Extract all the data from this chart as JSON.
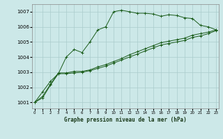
{
  "title": "Graphe pression niveau de la mer (hPa)",
  "bg_color": "#cce8e8",
  "grid_color": "#aacccc",
  "line_color": "#1a5c1a",
  "x_labels": [
    "0",
    "1",
    "2",
    "3",
    "4",
    "5",
    "6",
    "7",
    "8",
    "9",
    "10",
    "11",
    "12",
    "13",
    "14",
    "15",
    "16",
    "17",
    "18",
    "19",
    "20",
    "21",
    "22",
    "23"
  ],
  "ylim_min": 1000.6,
  "ylim_max": 1007.5,
  "yticks": [
    1001,
    1002,
    1003,
    1004,
    1005,
    1006,
    1007
  ],
  "line1": [
    1001.0,
    1001.7,
    1002.4,
    1002.9,
    1004.0,
    1004.5,
    1004.3,
    1005.0,
    1005.8,
    1006.0,
    1007.0,
    1007.1,
    1007.0,
    1006.9,
    1006.9,
    1006.85,
    1006.7,
    1006.8,
    1006.75,
    1006.6,
    1006.55,
    1006.1,
    1006.0,
    1005.8
  ],
  "line2": [
    1001.0,
    1001.4,
    1002.2,
    1002.95,
    1002.95,
    1003.05,
    1003.05,
    1003.15,
    1003.35,
    1003.5,
    1003.7,
    1003.9,
    1004.15,
    1004.35,
    1004.55,
    1004.75,
    1004.95,
    1005.05,
    1005.15,
    1005.25,
    1005.45,
    1005.55,
    1005.65,
    1005.8
  ],
  "line3": [
    1001.0,
    1001.3,
    1002.15,
    1002.9,
    1002.9,
    1002.95,
    1003.0,
    1003.1,
    1003.25,
    1003.4,
    1003.6,
    1003.8,
    1004.0,
    1004.2,
    1004.4,
    1004.6,
    1004.8,
    1004.9,
    1005.0,
    1005.1,
    1005.3,
    1005.4,
    1005.55,
    1005.75
  ]
}
